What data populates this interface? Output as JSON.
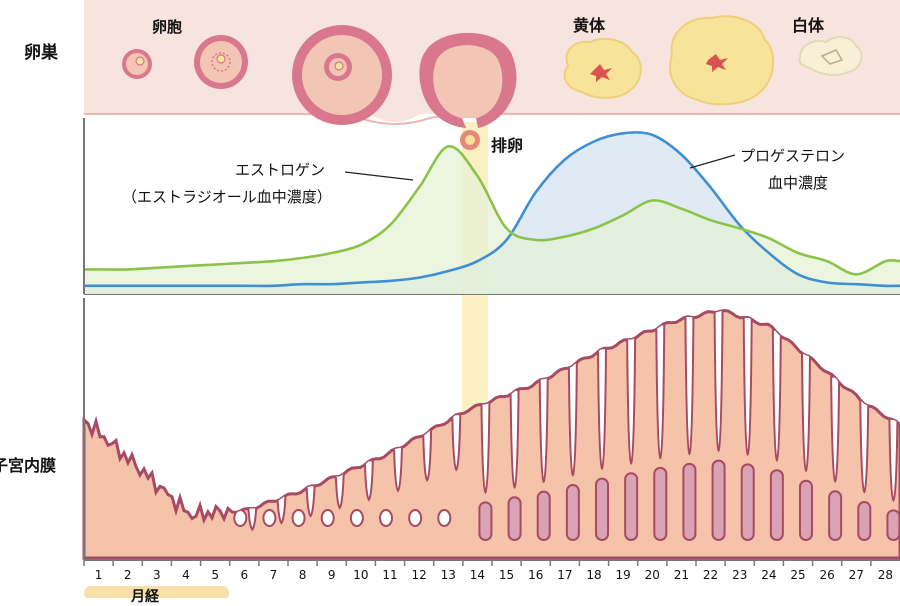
{
  "labels": {
    "ovary": "卵巣",
    "follicle": "卵胞",
    "corpus_luteum": "黄体",
    "corpus_albicans": "白体",
    "ovulation": "排卵",
    "estrogen_line1": "エストロゲン",
    "estrogen_line2": "（エストラジオール血中濃度）",
    "progesterone_line1": "プロゲステロン",
    "progesterone_line2": "血中濃度",
    "endometrium": "子宮内膜",
    "menstruation": "月経"
  },
  "colors": {
    "ovary_band": "#f8e4de",
    "follicle_ring": "#d9788c",
    "follicle_fill": "#f3c5b5",
    "luteum_fill": "#f7e39a",
    "estrogen_line": "#8bc34a",
    "estrogen_fill": "#e6f1d5",
    "progesterone_line": "#3f8fd2",
    "progesterone_fill": "#dbe6f3",
    "endometrium_fill": "#f4c3a9",
    "endometrium_edge": "#a64b63",
    "gland_fill": "#d9a3b3",
    "ovulation_band": "#fbf0c2",
    "menses_bar": "#f9dfa8"
  },
  "days": [
    "1",
    "2",
    "3",
    "4",
    "5",
    "6",
    "7",
    "8",
    "9",
    "10",
    "11",
    "12",
    "13",
    "14",
    "15",
    "16",
    "17",
    "18",
    "19",
    "20",
    "21",
    "22",
    "23",
    "24",
    "25",
    "26",
    "27",
    "28"
  ],
  "chart_data": {
    "type": "line",
    "x": [
      1,
      2,
      3,
      4,
      5,
      6,
      7,
      8,
      9,
      10,
      11,
      12,
      13,
      14,
      15,
      16,
      17,
      18,
      19,
      20,
      21,
      22,
      23,
      24,
      25,
      26,
      27,
      28
    ],
    "series": [
      {
        "name": "エストロゲン",
        "values": [
          0.15,
          0.15,
          0.16,
          0.17,
          0.18,
          0.19,
          0.2,
          0.22,
          0.25,
          0.3,
          0.42,
          0.65,
          0.9,
          0.72,
          0.4,
          0.33,
          0.35,
          0.4,
          0.48,
          0.57,
          0.52,
          0.45,
          0.4,
          0.34,
          0.25,
          0.2,
          0.12,
          0.2
        ]
      },
      {
        "name": "プロゲステロン",
        "values": [
          0.05,
          0.05,
          0.05,
          0.05,
          0.05,
          0.05,
          0.05,
          0.06,
          0.06,
          0.07,
          0.08,
          0.1,
          0.14,
          0.2,
          0.33,
          0.62,
          0.82,
          0.93,
          0.98,
          0.97,
          0.85,
          0.65,
          0.42,
          0.25,
          0.12,
          0.07,
          0.06,
          0.05
        ]
      }
    ]
  }
}
